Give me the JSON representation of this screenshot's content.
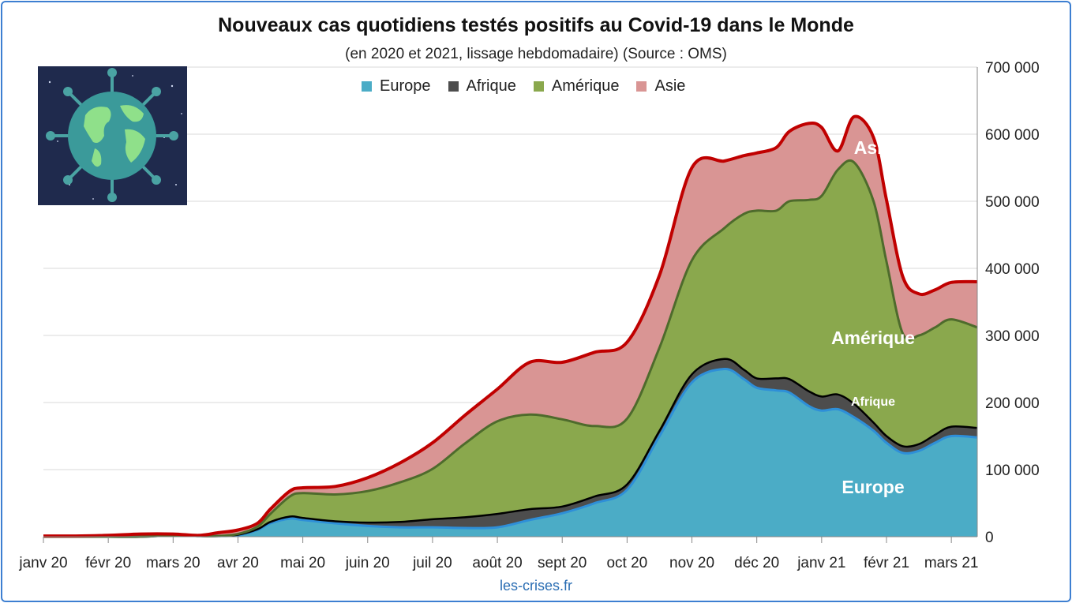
{
  "title": "Nouveaux cas quotidiens testés positifs au Covid-19 dans le Monde",
  "subtitle": "(en 2020 et 2021, lissage hebdomadaire) (Source : OMS)",
  "source": "les-crises.fr",
  "legend": [
    {
      "name": "Europe",
      "color": "#4bacc6"
    },
    {
      "name": "Afrique",
      "color": "#4d4d4d"
    },
    {
      "name": "Amérique",
      "color": "#8aa84d"
    },
    {
      "name": "Asie",
      "color": "#d99594"
    }
  ],
  "annotations": {
    "asie": "Asie",
    "amerique": "Amérique",
    "afrique": "Afrique",
    "europe": "Europe"
  },
  "colors": {
    "europe": "#4bacc6",
    "afrique": "#4d4d4d",
    "amerique": "#8aa84d",
    "asie": "#d99594",
    "total_line": "#c00000",
    "europe_line": "#2e8fd8",
    "frame": "#3d7fd1"
  },
  "chart_data": {
    "type": "area",
    "stacked": true,
    "x_ticks": [
      "janv 20",
      "févr 20",
      "mars 20",
      "avr 20",
      "mai 20",
      "juin 20",
      "juil 20",
      "août 20",
      "sept 20",
      "oct 20",
      "nov 20",
      "déc 20",
      "janv 21",
      "févr 21",
      "mars 21"
    ],
    "y_ticks": [
      "0",
      "100 000",
      "200 000",
      "300 000",
      "400 000",
      "500 000",
      "600 000",
      "700 000"
    ],
    "ylim": [
      0,
      700000
    ],
    "y_axis_position": "right",
    "grid": true,
    "legend_position": "top",
    "x": [
      0,
      0.5,
      1,
      1.5,
      2,
      2.4,
      2.7,
      3,
      3.3,
      3.5,
      3.8,
      4,
      4.5,
      5,
      5.5,
      6,
      6.5,
      7,
      7.5,
      8,
      8.5,
      9,
      9.5,
      10,
      10.5,
      10.8,
      11,
      11.3,
      11.5,
      11.8,
      12,
      12.25,
      12.5,
      12.8,
      13,
      13.25,
      13.5,
      13.75,
      14,
      14.4
    ],
    "series": [
      {
        "name": "Europe",
        "values": [
          0,
          0,
          0,
          0,
          2000,
          1000,
          1000,
          2000,
          10000,
          20000,
          27000,
          25000,
          20000,
          16000,
          14000,
          14000,
          13000,
          14000,
          25000,
          35000,
          50000,
          70000,
          150000,
          230000,
          250000,
          235000,
          222000,
          218000,
          215000,
          195000,
          188000,
          190000,
          178000,
          158000,
          140000,
          125000,
          128000,
          140000,
          150000,
          148000
        ]
      },
      {
        "name": "Afrique",
        "values": [
          0,
          0,
          0,
          0,
          0,
          0,
          0,
          1000,
          1000,
          2000,
          3000,
          3000,
          3000,
          5000,
          8000,
          12000,
          16000,
          20000,
          16000,
          10000,
          10000,
          8000,
          8000,
          12000,
          15000,
          14000,
          14000,
          18000,
          20000,
          22000,
          21000,
          22000,
          20000,
          12000,
          10000,
          10000,
          10000,
          12000,
          14000,
          14000
        ]
      },
      {
        "name": "Amérique",
        "values": [
          0,
          0,
          0,
          0,
          0,
          0,
          0,
          1000,
          4000,
          12000,
          30000,
          37000,
          40000,
          47000,
          59000,
          75000,
          110000,
          138000,
          141000,
          130000,
          105000,
          98000,
          124000,
          170000,
          195000,
          232000,
          250000,
          250000,
          265000,
          285000,
          299000,
          335000,
          360000,
          330000,
          260000,
          168000,
          162000,
          160000,
          160000,
          150000
        ]
      },
      {
        "name": "Asie",
        "values": [
          1000,
          1000,
          2000,
          4000,
          2000,
          1000,
          5000,
          6000,
          5000,
          7000,
          8000,
          8000,
          12000,
          20000,
          29000,
          39000,
          42000,
          48000,
          78000,
          85000,
          110000,
          114000,
          108000,
          138000,
          100000,
          87000,
          86000,
          94000,
          104000,
          114000,
          102000,
          28000,
          68000,
          95000,
          92000,
          85000,
          62000,
          56000,
          55000,
          68000
        ]
      }
    ]
  }
}
